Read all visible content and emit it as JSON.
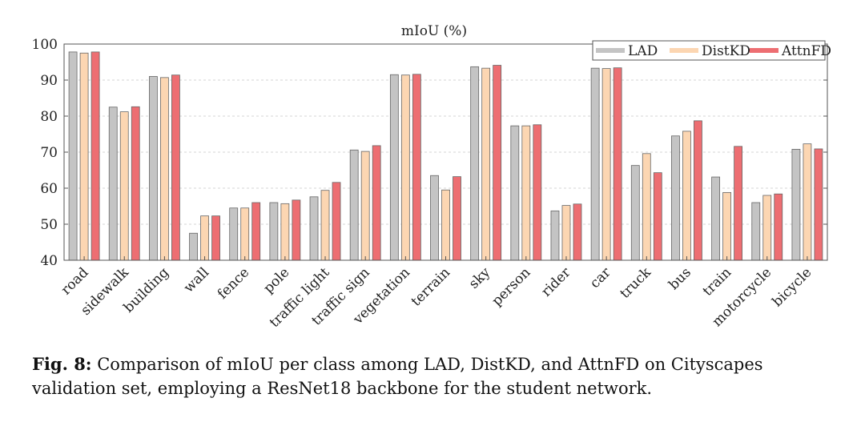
{
  "chart_data": {
    "type": "bar",
    "title": "mIoU (%)",
    "xlabel": "",
    "ylabel": "",
    "ylim": [
      40,
      100
    ],
    "yticks": [
      40,
      50,
      60,
      70,
      80,
      90,
      100
    ],
    "grid": true,
    "legend_position": "top-right",
    "categories": [
      "road",
      "sidewalk",
      "building",
      "wall",
      "fence",
      "pole",
      "traffic light",
      "traffic sign",
      "vegetation",
      "terrain",
      "sky",
      "person",
      "rider",
      "car",
      "truck",
      "bus",
      "train",
      "motorcycle",
      "bicycle"
    ],
    "series": [
      {
        "name": "LAD",
        "color": "#c4c4c4",
        "values": [
          97.8,
          82.5,
          91.0,
          47.5,
          54.5,
          56.0,
          57.6,
          70.6,
          91.5,
          63.5,
          93.7,
          77.3,
          53.7,
          93.3,
          66.3,
          74.5,
          63.1,
          56.0,
          70.8
        ]
      },
      {
        "name": "DistKD",
        "color": "#fcd6b2",
        "values": [
          97.5,
          81.2,
          90.7,
          52.3,
          54.5,
          55.7,
          59.4,
          70.2,
          91.4,
          59.5,
          93.3,
          77.3,
          55.2,
          93.2,
          69.6,
          75.8,
          58.8,
          58.0,
          72.3
        ]
      },
      {
        "name": "AttnFD",
        "color": "#ed6e72",
        "values": [
          97.8,
          82.6,
          91.4,
          52.3,
          56.0,
          56.7,
          61.6,
          71.8,
          91.6,
          63.2,
          94.1,
          77.6,
          55.6,
          93.4,
          64.3,
          78.7,
          71.6,
          58.4,
          70.9
        ]
      }
    ]
  },
  "caption": {
    "label": "Fig. 8:",
    "text": " Comparison of mIoU per class among LAD, DistKD, and AttnFD on Cityscapes validation set, employing a ResNet18 backbone for the student network."
  }
}
